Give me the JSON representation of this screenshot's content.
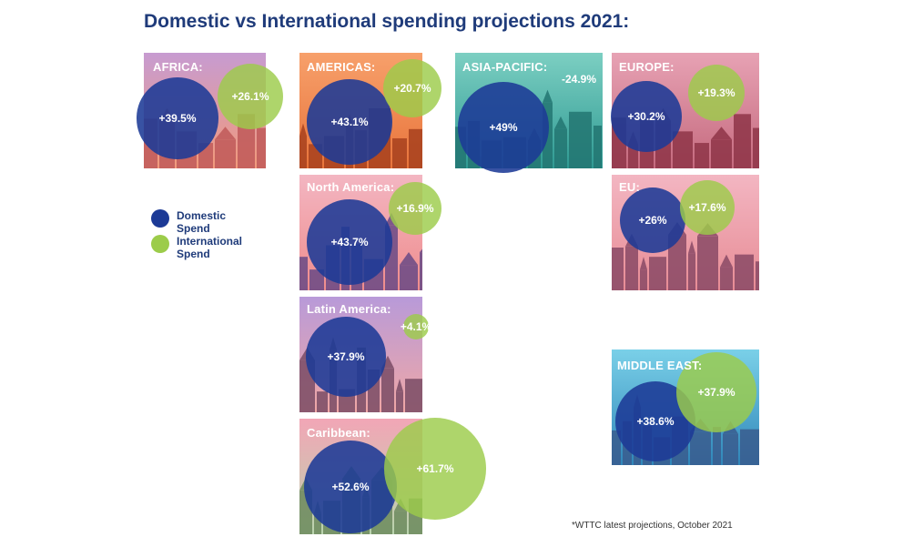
{
  "title": "Domestic vs International spending projections 2021:",
  "legend": {
    "domestic": "Domestic Spend",
    "international": "International Spend"
  },
  "colors": {
    "domestic": "#1c3a96",
    "international": "#9ccc4a",
    "title": "#1f3b7a"
  },
  "footnote": "*WTTC latest projections, October 2021",
  "chart_data": {
    "type": "bubble",
    "title": "Domestic vs International spending projections 2021:",
    "unit": "% change",
    "series_names": [
      "Domestic Spend",
      "International Spend"
    ],
    "regions": [
      {
        "name": "AFRICA:",
        "domestic": 39.5,
        "domestic_label": "+39.5%",
        "international": 26.1,
        "international_label": "+26.1%"
      },
      {
        "name": "AMERICAS:",
        "domestic": 43.1,
        "domestic_label": "+43.1%",
        "international": 20.7,
        "international_label": "+20.7%"
      },
      {
        "name": "ASIA-PACIFIC:",
        "domestic": 49,
        "domestic_label": "+49%",
        "international": -24.9,
        "international_label": "-24.9%"
      },
      {
        "name": "EUROPE:",
        "domestic": 30.2,
        "domestic_label": "+30.2%",
        "international": 19.3,
        "international_label": "+19.3%"
      },
      {
        "name": "North America:",
        "domestic": 43.7,
        "domestic_label": "+43.7%",
        "international": 16.9,
        "international_label": "+16.9%"
      },
      {
        "name": "EU:",
        "domestic": 26,
        "domestic_label": "+26%",
        "international": 17.6,
        "international_label": "+17.6%"
      },
      {
        "name": "Latin America:",
        "domestic": 37.9,
        "domestic_label": "+37.9%",
        "international": 4.1,
        "international_label": "+4.1%"
      },
      {
        "name": "MIDDLE EAST:",
        "domestic": 38.6,
        "domestic_label": "+38.6%",
        "international": 37.9,
        "international_label": "+37.9%"
      },
      {
        "name": "Caribbean:",
        "domestic": 52.6,
        "domestic_label": "+52.6%",
        "international": 61.7,
        "international_label": "+61.7%"
      }
    ]
  }
}
